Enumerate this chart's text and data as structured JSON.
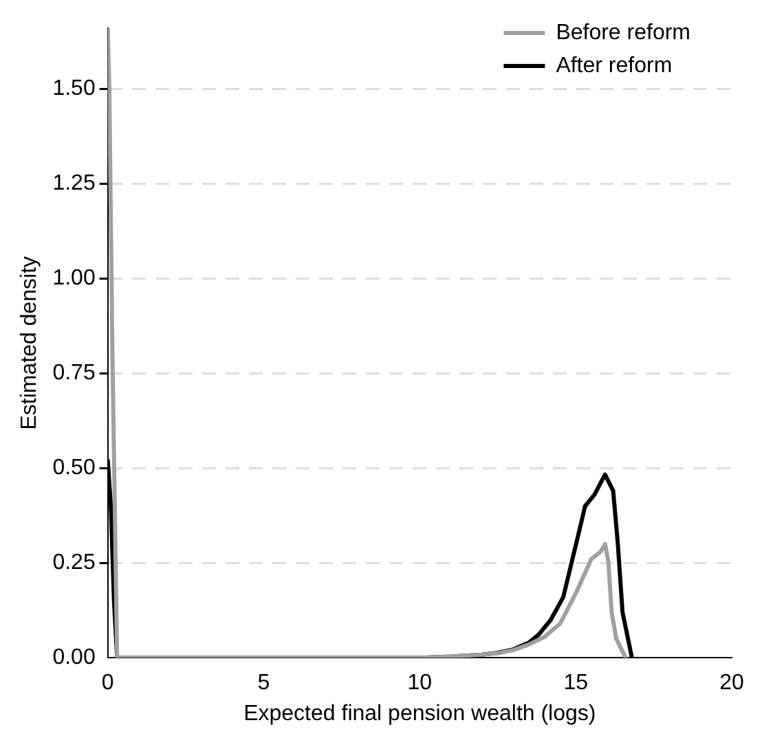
{
  "chart_data": {
    "type": "line",
    "xlabel": "Expected final pension wealth (logs)",
    "ylabel": "Estimated density",
    "xlim": [
      0,
      20
    ],
    "xticks": [
      0,
      5,
      10,
      15,
      20
    ],
    "ylim": [
      0,
      1.66
    ],
    "yticks": [
      {
        "value": 0,
        "label": "0.00"
      },
      {
        "value": 0.25,
        "label": "0.25"
      },
      {
        "value": 0.5,
        "label": "0.50"
      },
      {
        "value": 0.75,
        "label": "0.75"
      },
      {
        "value": 1,
        "label": "1.00"
      },
      {
        "value": 1.25,
        "label": "1.25"
      },
      {
        "value": 1.5,
        "label": "1.50"
      }
    ],
    "grid": "y",
    "legend": "top right",
    "marker": "none",
    "line_style": "solid",
    "series": [
      {
        "name": "Before reform",
        "color": "#a0a0a0",
        "x": [
          0,
          0.05,
          0.15,
          0.3,
          2,
          6,
          10,
          11,
          12,
          12.5,
          13,
          13.5,
          14,
          14.5,
          15,
          15.5,
          15.8,
          15.94,
          16.05,
          16.15,
          16.3,
          16.6
        ],
        "values": [
          1.66,
          1.5,
          0.8,
          0,
          0,
          0,
          0,
          0.003,
          0.008,
          0.012,
          0.02,
          0.035,
          0.055,
          0.09,
          0.17,
          0.26,
          0.28,
          0.3,
          0.25,
          0.12,
          0.05,
          0
        ]
      },
      {
        "name": "After reform",
        "color": "#000000",
        "x": [
          0,
          0.1,
          0.2,
          0.3,
          2,
          6,
          10,
          11,
          12,
          12.5,
          13,
          13.5,
          13.8,
          14.2,
          14.6,
          15.07,
          15.3,
          15.6,
          15.94,
          16.2,
          16.35,
          16.5,
          16.8
        ],
        "values": [
          0.52,
          0.4,
          0.15,
          0,
          0,
          0,
          0,
          0.003,
          0.008,
          0.013,
          0.022,
          0.04,
          0.06,
          0.1,
          0.16,
          0.32,
          0.4,
          0.43,
          0.483,
          0.44,
          0.3,
          0.12,
          0
        ]
      }
    ]
  }
}
